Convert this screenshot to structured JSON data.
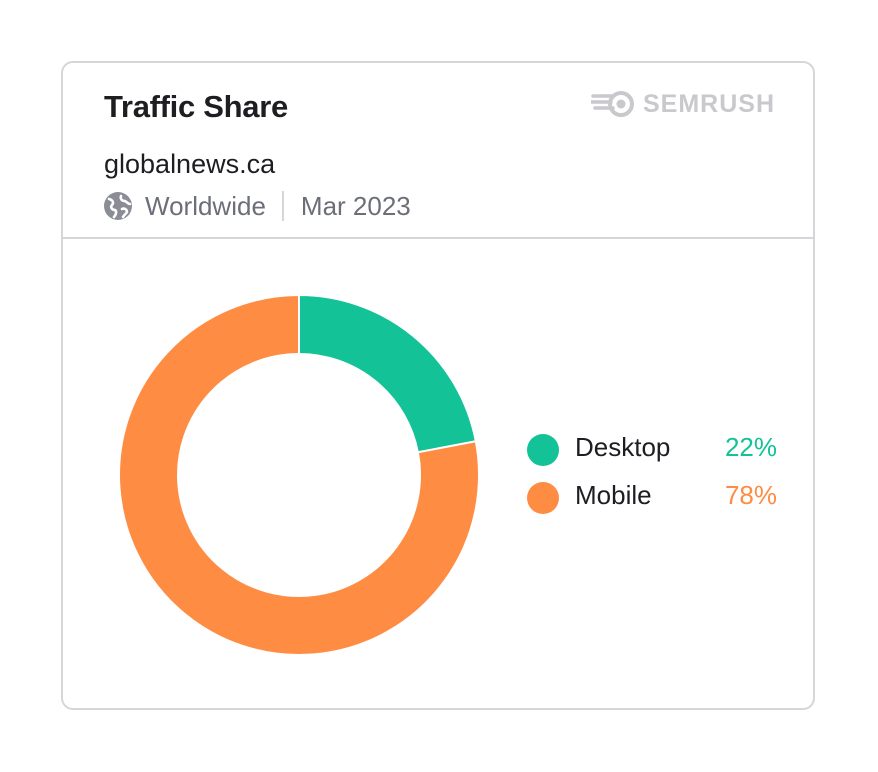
{
  "card": {
    "title": "Traffic Share",
    "brand": "SEMRUSH",
    "domain": "globalnews.ca",
    "region": "Worldwide",
    "date": "Mar 2023"
  },
  "icons": {
    "brand": "semrush-logo-icon",
    "region": "globe-icon"
  },
  "colors": {
    "desktop": "#13c296",
    "mobile": "#ff8c43",
    "border": "#d6d6da",
    "muted": "#6c6e79"
  },
  "chart_data": {
    "type": "pie",
    "style": "donut",
    "series": [
      {
        "name": "Desktop",
        "value": 22,
        "label": "22%",
        "color": "#13c296"
      },
      {
        "name": "Mobile",
        "value": 78,
        "label": "78%",
        "color": "#ff8c43"
      }
    ],
    "legend_position": "right"
  }
}
